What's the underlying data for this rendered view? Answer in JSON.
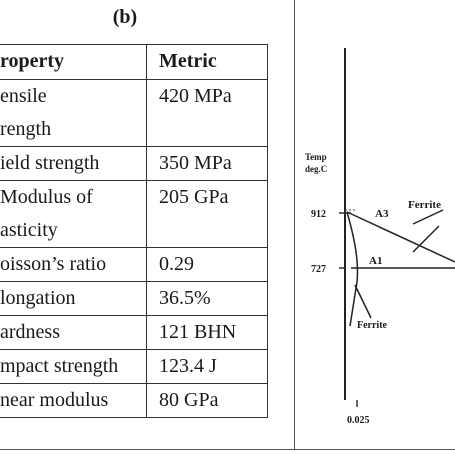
{
  "panel_label": "(b)",
  "table": {
    "headers": [
      "roperty",
      "Metric"
    ],
    "rows": [
      {
        "property": [
          "ensile",
          "rength"
        ],
        "metric": "420 MPa"
      },
      {
        "property": [
          "ield strength"
        ],
        "metric": "350 MPa"
      },
      {
        "property": [
          "Modulus of",
          "asticity"
        ],
        "metric": "205 GPa"
      },
      {
        "property": [
          "oisson’s ratio"
        ],
        "metric": "0.29"
      },
      {
        "property": [
          "longation"
        ],
        "metric": "36.5%"
      },
      {
        "property": [
          "ardness"
        ],
        "metric": "121 BHN"
      },
      {
        "property": [
          "mpact strength"
        ],
        "metric": "123.4 J"
      },
      {
        "property": [
          "near modulus"
        ],
        "metric": "80 GPa"
      }
    ]
  },
  "diagram": {
    "y_axis_label_line1": "Temp",
    "y_axis_label_line2": "deg.C",
    "tick_912": "912",
    "tick_727": "727",
    "tick_0025": "0.025",
    "label_a3": "A3",
    "label_a1": "A1",
    "label_ferrite_upper": "Ferrite",
    "label_ferrite_lower": "Ferrite"
  }
}
